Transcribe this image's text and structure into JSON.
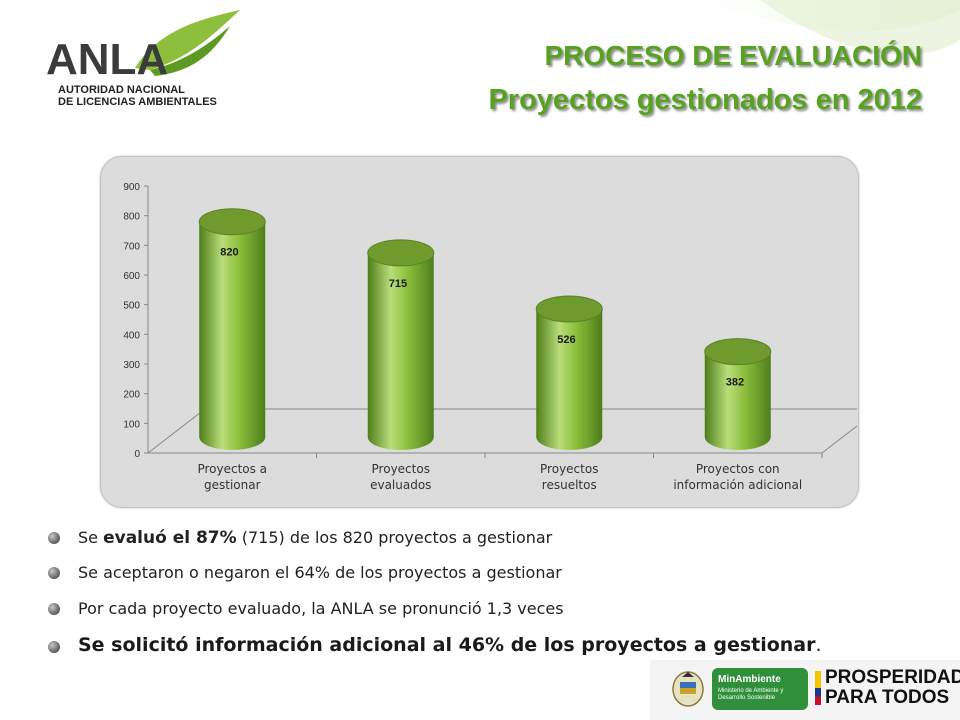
{
  "logo": {
    "name": "ANLA",
    "subtitle_line1": "AUTORIDAD NACIONAL",
    "subtitle_line2": "DE LICENCIAS AMBIENTALES"
  },
  "header": {
    "title": "PROCESO DE EVALUACIÓN",
    "subtitle": "Proyectos gestionados en 2012"
  },
  "colors": {
    "accent": "#57A321",
    "bar": "#8DBF3C",
    "bar_dark": "#4E7E1B",
    "panel": "#DCDCDC"
  },
  "chart_data": {
    "type": "bar",
    "style": "3d-cylinder",
    "categories": [
      "Proyectos a gestionar",
      "Proyectos evaluados",
      "Proyectos resueltos",
      "Proyectos con información adicional"
    ],
    "category_lines": [
      [
        "Proyectos a",
        "gestionar"
      ],
      [
        "Proyectos",
        "evaluados"
      ],
      [
        "Proyectos",
        "resueltos"
      ],
      [
        "Proyectos con",
        "información adicional"
      ]
    ],
    "values": [
      820,
      715,
      526,
      382
    ],
    "data_labels": [
      "820",
      "715",
      "526",
      "382"
    ],
    "yticks": [
      "0",
      "100",
      "200",
      "300",
      "400",
      "500",
      "600",
      "700",
      "800",
      "900"
    ],
    "ylim": [
      0,
      900
    ],
    "grid": false,
    "legend": "none"
  },
  "bullets": [
    {
      "pre": "Se ",
      "bold": "evaluó el 87%",
      "post": " (715) de los 820 proyectos a gestionar"
    },
    {
      "text": "Se aceptaron o negaron el 64% de los proyectos a gestionar"
    },
    {
      "text": "Por cada proyecto  evaluado, la ANLA se pronunció 1,3 veces"
    },
    {
      "text": "Se solicitó información adicional al  46% de los proyectos a gestionar",
      "end": "."
    }
  ],
  "footer": {
    "ministry": "MinAmbiente",
    "ministry_sub": "Ministerio de Ambiente y Desarrollo Sostenible",
    "slogan_line1": "PROSPERIDAD",
    "slogan_line2": "PARA TODOS"
  }
}
